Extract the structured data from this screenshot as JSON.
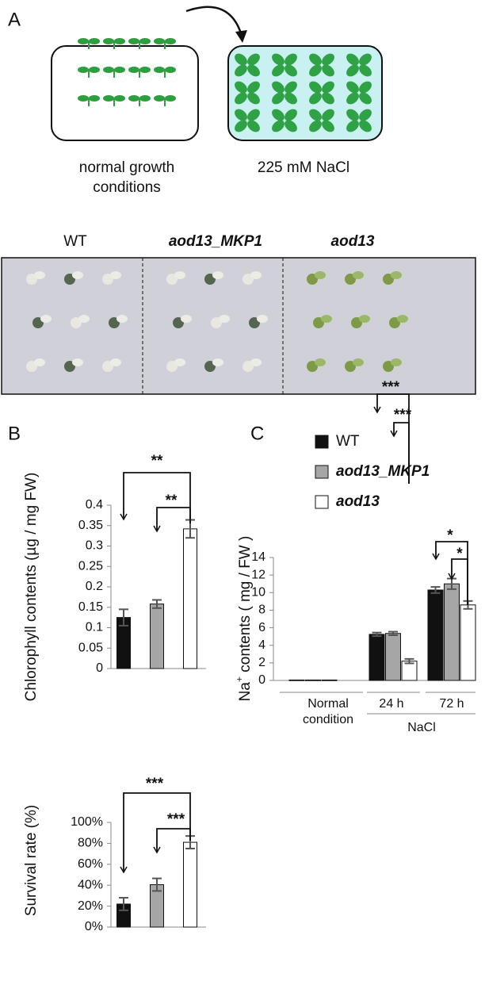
{
  "panels": {
    "a": "A",
    "b": "B",
    "c": "C"
  },
  "panel_a": {
    "left_label": [
      "normal growth",
      "conditions"
    ],
    "right_label": "225 mM NaCl",
    "photo_labels": [
      "WT",
      "aod13_MKP1",
      "aod13"
    ]
  },
  "chart_data": [
    {
      "type": "bar",
      "ylabel": "Chlorophyll contents (µg / mg FW)",
      "categories": [
        null,
        null,
        null
      ],
      "values": [
        0.125,
        0.158,
        0.342
      ],
      "errors": [
        0.02,
        0.01,
        0.022
      ],
      "colors": [
        "#111111",
        "#a6a6a6",
        "#ffffff"
      ],
      "ylim": [
        0,
        0.4
      ],
      "yticks": [
        0,
        0.05,
        0.1,
        0.15,
        0.2,
        0.25,
        0.3,
        0.35,
        0.4
      ],
      "annotations": [
        "**",
        "**"
      ]
    },
    {
      "type": "bar",
      "ylabel": "Survival rate (%)",
      "categories": [
        null,
        null,
        null
      ],
      "values": [
        22,
        40.5,
        81
      ],
      "errors": [
        6,
        6,
        6
      ],
      "colors": [
        "#111111",
        "#a6a6a6",
        "#ffffff"
      ],
      "ylim": [
        0,
        100
      ],
      "yticks": [
        {
          "value": 0,
          "label": "0%"
        },
        {
          "value": 20,
          "label": "20%"
        },
        {
          "value": 40,
          "label": "40%"
        },
        {
          "value": 60,
          "label": "60%"
        },
        {
          "value": 80,
          "label": "80%"
        },
        {
          "value": 100,
          "label": "100%"
        }
      ],
      "annotations": [
        "***",
        "***"
      ]
    },
    {
      "type": "grouped_bar",
      "ylabel": {
        "pre": "Na",
        "sup": "+",
        "post": " contents ( mg / FW )"
      },
      "categories": [
        "Normal condition",
        "24 h",
        "72 h"
      ],
      "group_label": "NaCl",
      "series": [
        {
          "name": "WT",
          "color": "#111111",
          "values": [
            0.05,
            5.25,
            10.3
          ],
          "errors": [
            0,
            0.2,
            0.35
          ]
        },
        {
          "name": "aod13_MKP1",
          "color": "#a6a6a6",
          "values": [
            0.05,
            5.35,
            11
          ],
          "errors": [
            0,
            0.2,
            0.6
          ]
        },
        {
          "name": "aod13",
          "color": "#ffffff",
          "values": [
            0.05,
            2.2,
            8.6
          ],
          "errors": [
            0,
            0.25,
            0.45
          ]
        }
      ],
      "ylim": [
        0,
        14
      ],
      "yticks": [
        0,
        2,
        4,
        6,
        8,
        10,
        12,
        14
      ],
      "annotations": [
        "***",
        "***",
        "*",
        "*"
      ]
    }
  ]
}
